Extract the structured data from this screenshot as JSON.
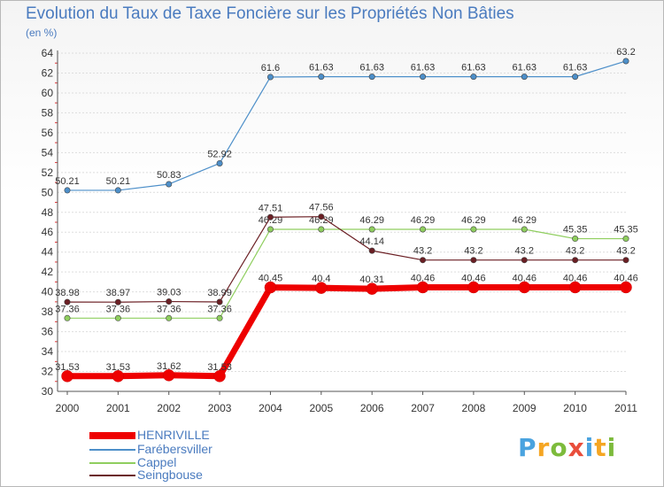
{
  "chart_data": {
    "type": "line",
    "title": "Evolution du Taux de Taxe Foncière sur les Propriétés Non Bâties",
    "ylabel": "(en %)",
    "xlabel": "",
    "ylim": [
      30,
      64
    ],
    "yticks": [
      "30",
      "32",
      "34",
      "36",
      "38",
      "40",
      "42",
      "44",
      "46",
      "48",
      "50",
      "52",
      "54",
      "56",
      "58",
      "60",
      "62",
      "64"
    ],
    "categories": [
      "2000",
      "2001",
      "2002",
      "2003",
      "2004",
      "2005",
      "2006",
      "2007",
      "2008",
      "2009",
      "2010",
      "2011"
    ],
    "series": [
      {
        "name": "Farébersviller",
        "color": "#4d8fc9",
        "values": [
          50.21,
          50.21,
          50.83,
          52.92,
          61.6,
          61.63,
          61.63,
          61.63,
          61.63,
          61.63,
          61.63,
          63.2
        ],
        "labels": [
          "50.21",
          "50.21",
          "50.83",
          "52.92",
          "61.6",
          "61.63",
          "61.63",
          "61.63",
          "61.63",
          "61.63",
          "61.63",
          "63.2"
        ]
      },
      {
        "name": "Cappel",
        "color": "#8fce5e",
        "values": [
          37.36,
          37.36,
          37.36,
          37.36,
          46.29,
          46.29,
          46.29,
          46.29,
          46.29,
          46.29,
          45.35,
          45.35
        ],
        "labels": [
          "37.36",
          "37.36",
          "37.36",
          "37.36",
          "46.29",
          "46.29",
          "46.29",
          "46.29",
          "46.29",
          "46.29",
          "45.35",
          "45.35"
        ]
      },
      {
        "name": "Seingbouse",
        "color": "#6b1f24",
        "values": [
          38.98,
          38.97,
          39.03,
          38.99,
          47.51,
          47.56,
          44.14,
          43.2,
          43.2,
          43.2,
          43.2,
          43.2
        ],
        "labels": [
          "38.98",
          "38.97",
          "39.03",
          "38.99",
          "47.51",
          "47.56",
          "44.14",
          "43.2",
          "43.2",
          "43.2",
          "43.2",
          "43.2"
        ]
      },
      {
        "name": "HENRIVILLE",
        "color": "#ee0000",
        "values": [
          31.53,
          31.53,
          31.62,
          31.53,
          40.45,
          40.4,
          40.31,
          40.46,
          40.46,
          40.46,
          40.46,
          40.46
        ],
        "labels": [
          "31.53",
          "31.53",
          "31.62",
          "31.53",
          "40.45",
          "40.4",
          "40.31",
          "40.46",
          "40.46",
          "40.46",
          "40.46",
          "40.46"
        ]
      }
    ],
    "legend": [
      "HENRIVILLE",
      "Farébersviller",
      "Cappel",
      "Seingbouse"
    ],
    "legend_position": "bottom-left"
  },
  "logo": {
    "letters": [
      "P",
      "r",
      "o",
      "x",
      "i",
      "t",
      "i"
    ],
    "colors": [
      "#4aa3df",
      "#f5a623",
      "#7dbb3c",
      "#e94e3c",
      "#4aa3df",
      "#f5a623",
      "#7dbb3c"
    ]
  }
}
